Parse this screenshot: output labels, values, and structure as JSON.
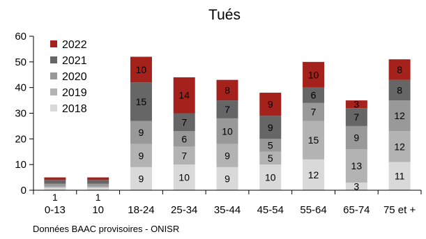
{
  "chart_data": {
    "type": "bar",
    "stacked": true,
    "title": "Tués",
    "source_note": "Données BAAC provisoires - ONISR",
    "categories": [
      "0-13",
      "10",
      "18-24",
      "25-34",
      "35-44",
      "45-54",
      "55-64",
      "65-74",
      "75 et +"
    ],
    "ylim": [
      0,
      60
    ],
    "yticks": [
      0,
      10,
      20,
      30,
      40,
      50,
      60
    ],
    "grid": false,
    "legend_position": "top-left",
    "series": [
      {
        "name": "2018",
        "color": "#d9d9d9",
        "values": [
          1,
          1,
          9,
          10,
          9,
          10,
          12,
          3,
          11
        ],
        "labels": [
          "1",
          "1",
          "9",
          "10",
          "9",
          "10",
          "12",
          "3",
          "11"
        ]
      },
      {
        "name": "2019",
        "color": "#b3b3b3",
        "values": [
          0.5,
          0.5,
          9,
          7,
          9,
          5,
          15,
          13,
          12
        ],
        "labels": [
          "",
          "",
          "9",
          "7",
          "9",
          "5",
          "15",
          "13",
          "12"
        ]
      },
      {
        "name": "2020",
        "color": "#999999",
        "values": [
          1,
          1,
          9,
          6,
          10,
          5,
          7,
          9,
          12
        ],
        "labels": [
          "",
          "",
          "9",
          "6",
          "10",
          "5",
          "7",
          "9",
          "12"
        ]
      },
      {
        "name": "2021",
        "color": "#666666",
        "values": [
          1.5,
          1.5,
          15,
          7,
          7,
          9,
          6,
          7,
          8
        ],
        "labels": [
          "",
          "",
          "15",
          "7",
          "7",
          "9",
          "6",
          "7",
          "8"
        ]
      },
      {
        "name": "2022",
        "color": "#a5221c",
        "values": [
          1,
          1,
          10,
          14,
          8,
          9,
          10,
          3,
          8
        ],
        "labels": [
          "",
          "",
          "10",
          "14",
          "8",
          "9",
          "10",
          "3",
          "8"
        ]
      }
    ]
  }
}
